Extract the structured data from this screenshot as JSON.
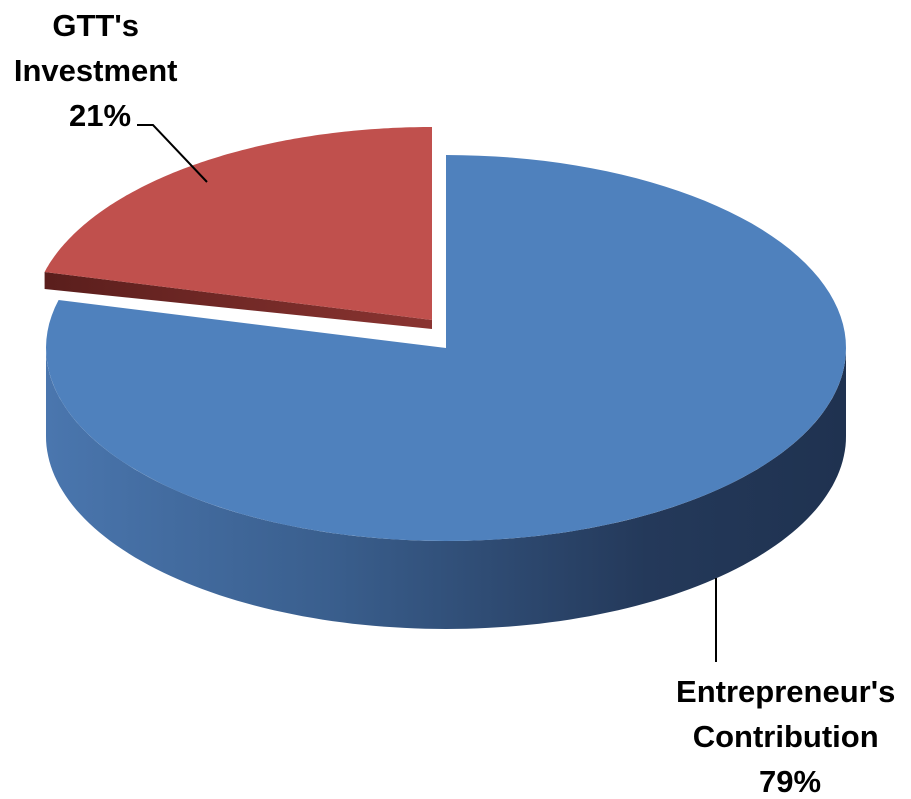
{
  "chart_data": {
    "type": "pie",
    "style": "3d-exploded",
    "title": "",
    "legend": "none",
    "slices": [
      {
        "label_lines": [
          "GTT's",
          "Investment"
        ],
        "percent_text": "21%",
        "value": 21,
        "color": "#C0504D",
        "side_color": "#7A2A28",
        "exploded": true
      },
      {
        "label_lines": [
          "Entrepreneur's",
          "Contribution"
        ],
        "percent_text": "79%",
        "value": 79,
        "color": "#4F81BD",
        "side_color": "#2E4F7A",
        "exploded": false
      }
    ]
  }
}
